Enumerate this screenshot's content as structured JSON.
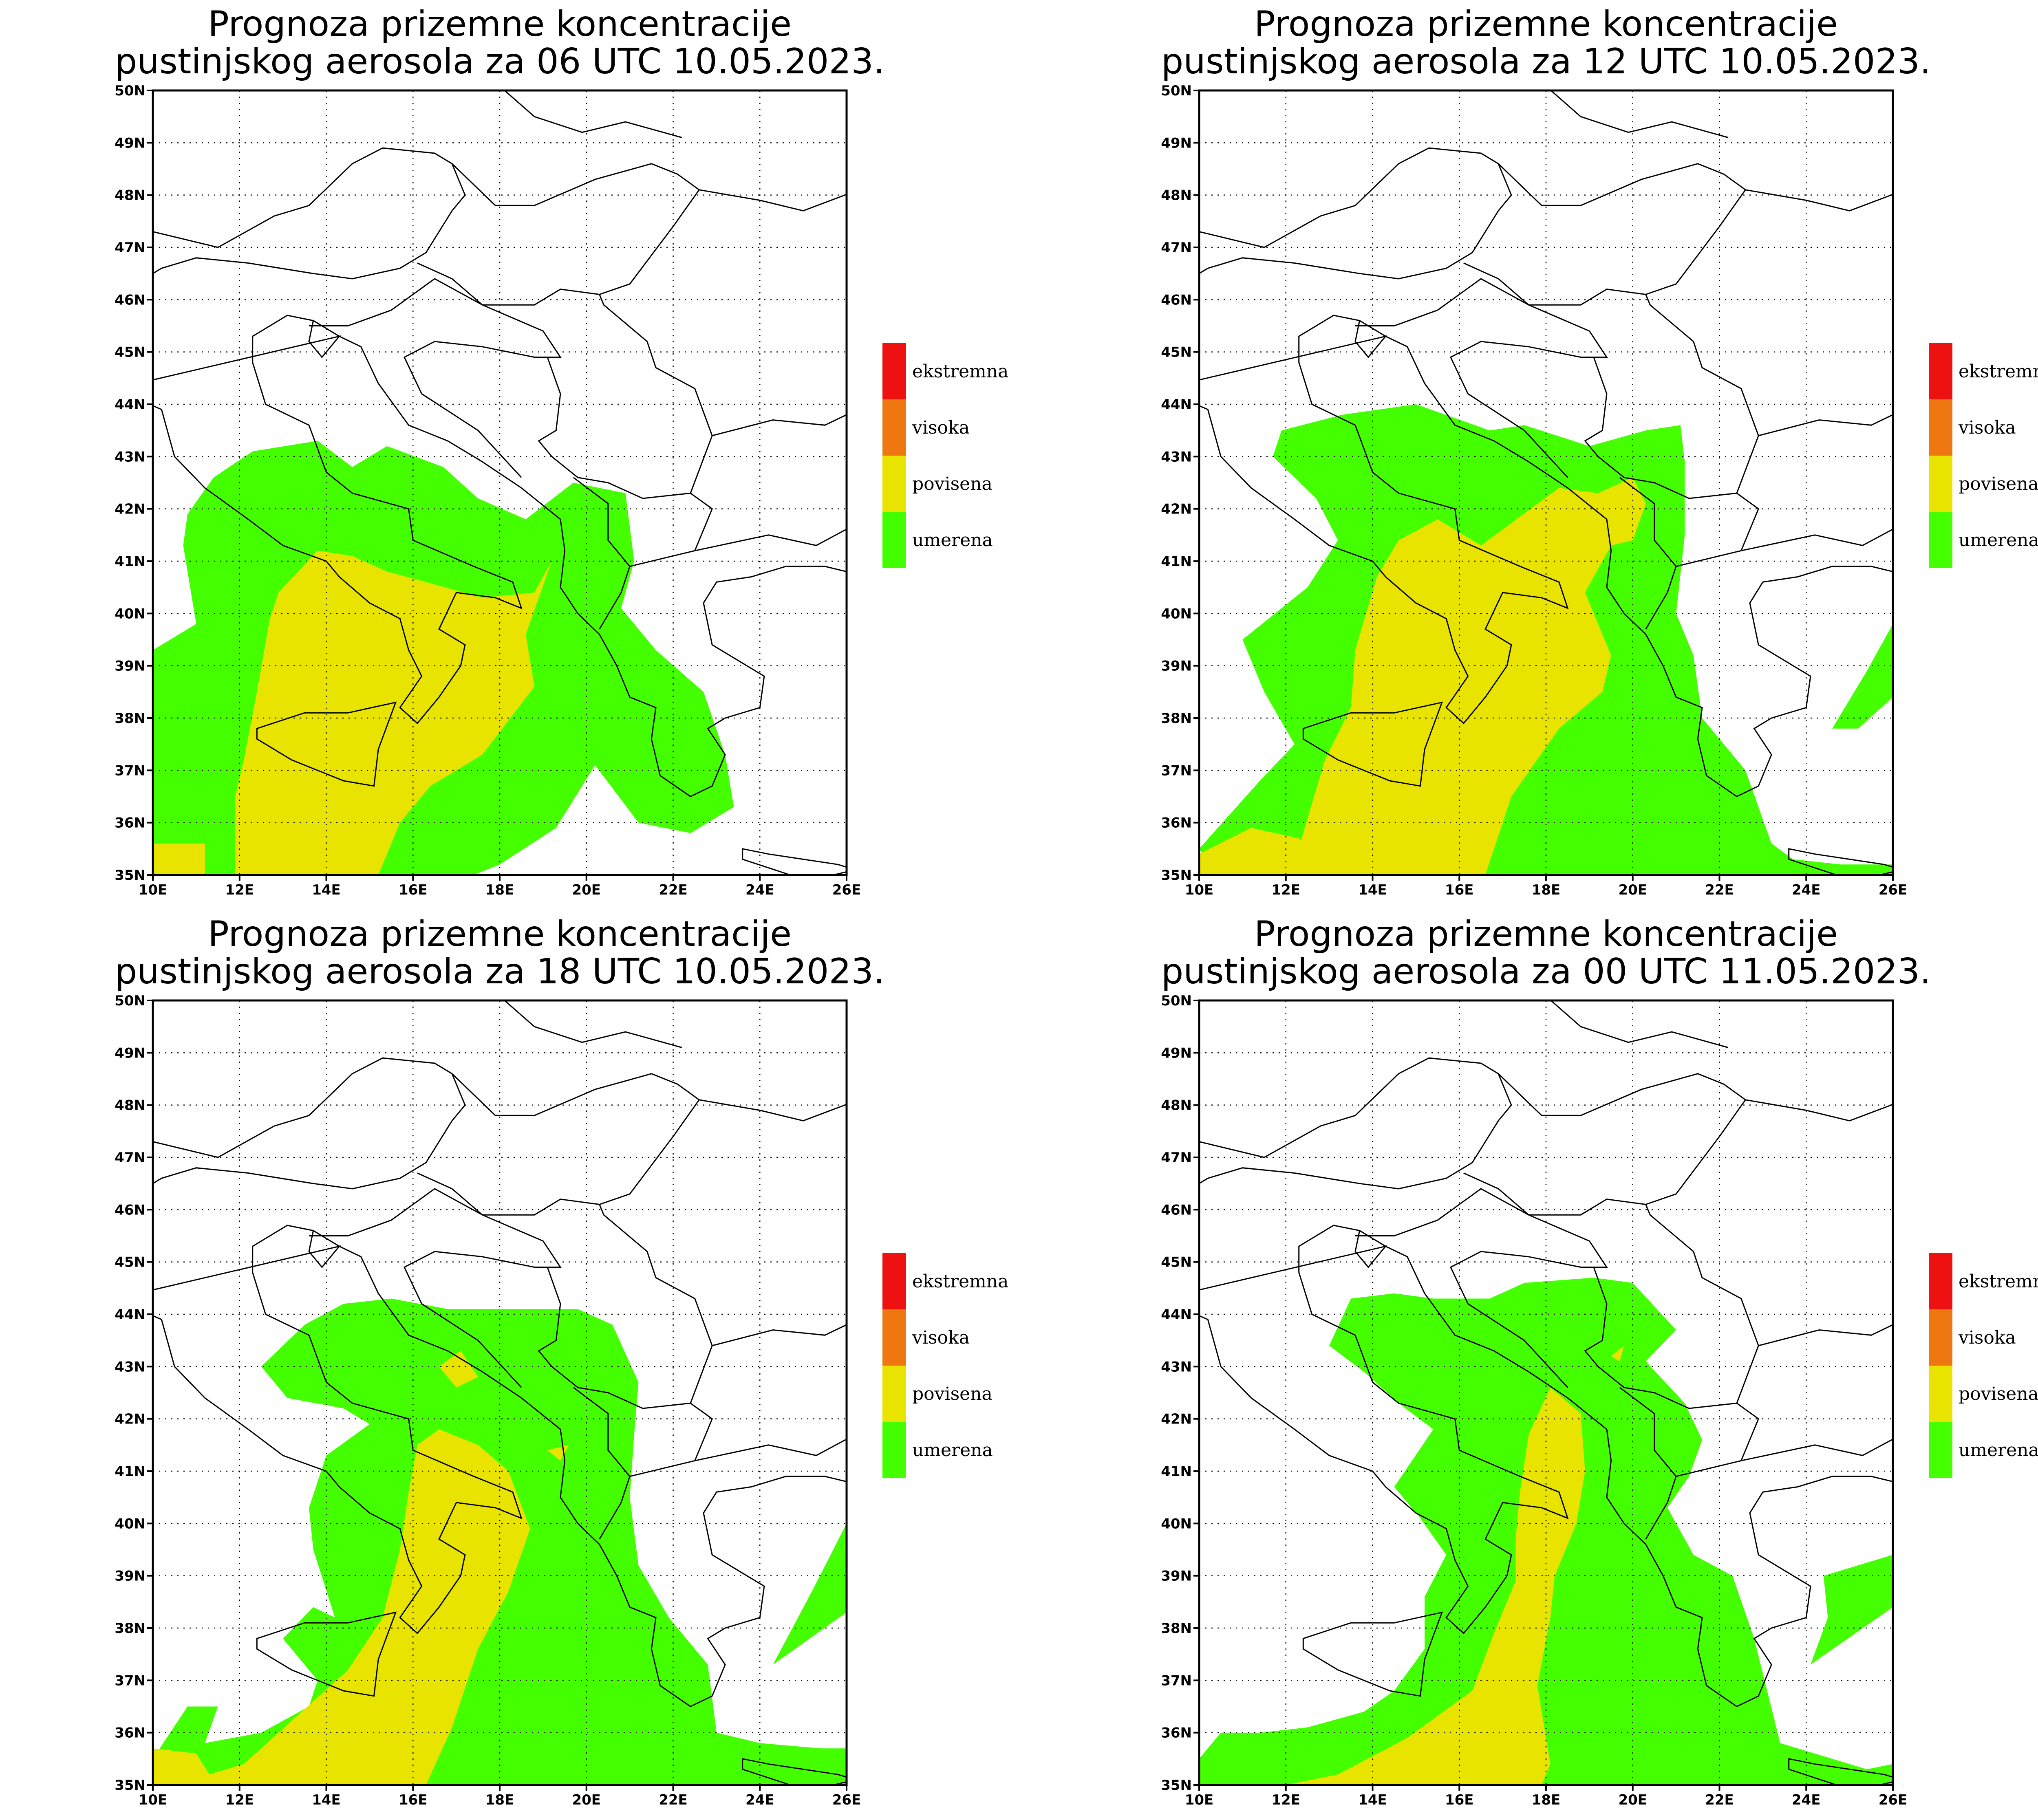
{
  "panels": [
    {
      "title_line1": "Prognoza prizemne koncentracije",
      "title_line2": "pustinjskog aerosola za 06 UTC 10.05.2023."
    },
    {
      "title_line1": "Prognoza prizemne koncentracije",
      "title_line2": "pustinjskog aerosola za 12 UTC 10.05.2023."
    },
    {
      "title_line1": "Prognoza prizemne koncentracije",
      "title_line2": "pustinjskog aerosola za 18 UTC 10.05.2023."
    },
    {
      "title_line1": "Prognoza prizemne koncentracije",
      "title_line2": "pustinjskog aerosola za 00 UTC 11.05.2023."
    }
  ],
  "axes": {
    "lat_labels": [
      "35N",
      "36N",
      "37N",
      "38N",
      "39N",
      "40N",
      "41N",
      "42N",
      "43N",
      "44N",
      "45N",
      "46N",
      "47N",
      "48N",
      "49N",
      "50N"
    ],
    "lon_labels": [
      "10E",
      "12E",
      "14E",
      "16E",
      "18E",
      "20E",
      "22E",
      "24E",
      "26E"
    ]
  },
  "legend": [
    {
      "label": "ekstremna",
      "color": "#ee1111"
    },
    {
      "label": "visoka",
      "color": "#ee7711"
    },
    {
      "label": "povisena",
      "color": "#e8e400"
    },
    {
      "label": "umerena",
      "color": "#44ff00"
    }
  ]
}
